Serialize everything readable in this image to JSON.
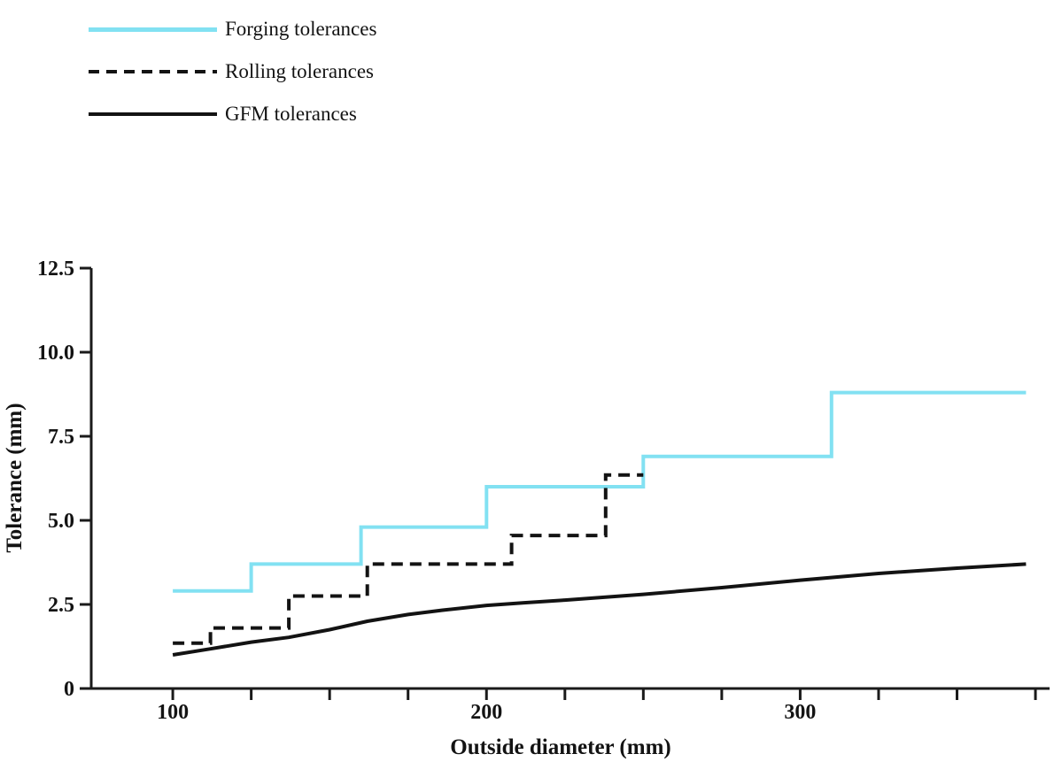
{
  "legend": {
    "items": [
      {
        "label": "Forging tolerances",
        "series": "forging",
        "line_style": "solid",
        "color": "#82E1F2"
      },
      {
        "label": "Rolling tolerances",
        "series": "rolling",
        "line_style": "dashed",
        "color": "#131313"
      },
      {
        "label": "GFM tolerances",
        "series": "gfm",
        "line_style": "solid",
        "color": "#131313"
      }
    ]
  },
  "chart_data": {
    "type": "line",
    "title": "",
    "xlabel": "Outside diameter (mm)",
    "ylabel": "Tolerance (mm)",
    "xlim": [
      74,
      380
    ],
    "ylim": [
      0,
      12.5
    ],
    "grid": false,
    "legend_position": "top-left",
    "x_ticks_minor": [
      100,
      125,
      150,
      175,
      200,
      225,
      250,
      275,
      300,
      325,
      350,
      375
    ],
    "x_ticks_major": [
      100,
      200,
      300
    ],
    "x_tick_labels": [
      "100",
      "200",
      "300"
    ],
    "y_ticks": [
      0,
      2.5,
      5.0,
      7.5,
      10.0,
      12.5
    ],
    "y_tick_labels": [
      "0",
      "2.5",
      "5.0",
      "7.5",
      "10.0",
      "12.5"
    ],
    "series": [
      {
        "name": "Forging tolerances",
        "type": "step",
        "color": "#82E1F2",
        "dash": false,
        "steps": [
          {
            "from": 100,
            "to": 125,
            "value": 2.9
          },
          {
            "from": 125,
            "to": 160,
            "value": 3.7
          },
          {
            "from": 160,
            "to": 200,
            "value": 4.8
          },
          {
            "from": 200,
            "to": 250,
            "value": 6.0
          },
          {
            "from": 250,
            "to": 310,
            "value": 6.9
          },
          {
            "from": 310,
            "to": 372,
            "value": 8.8
          }
        ]
      },
      {
        "name": "Rolling tolerances",
        "type": "step",
        "color": "#131313",
        "dash": true,
        "steps": [
          {
            "from": 100,
            "to": 112,
            "value": 1.35
          },
          {
            "from": 112,
            "to": 137,
            "value": 1.8
          },
          {
            "from": 137,
            "to": 162,
            "value": 2.75
          },
          {
            "from": 162,
            "to": 208,
            "value": 3.7
          },
          {
            "from": 208,
            "to": 238,
            "value": 4.55
          },
          {
            "from": 238,
            "to": 250,
            "value": 6.35
          }
        ]
      },
      {
        "name": "GFM tolerances",
        "type": "line",
        "color": "#131313",
        "dash": false,
        "points": [
          [
            100,
            1.0
          ],
          [
            112,
            1.18
          ],
          [
            125,
            1.38
          ],
          [
            137,
            1.52
          ],
          [
            150,
            1.75
          ],
          [
            162,
            2.0
          ],
          [
            175,
            2.2
          ],
          [
            186,
            2.33
          ],
          [
            200,
            2.47
          ],
          [
            212,
            2.55
          ],
          [
            225,
            2.63
          ],
          [
            250,
            2.8
          ],
          [
            275,
            3.0
          ],
          [
            300,
            3.22
          ],
          [
            325,
            3.42
          ],
          [
            350,
            3.58
          ],
          [
            372,
            3.7
          ]
        ]
      }
    ]
  }
}
